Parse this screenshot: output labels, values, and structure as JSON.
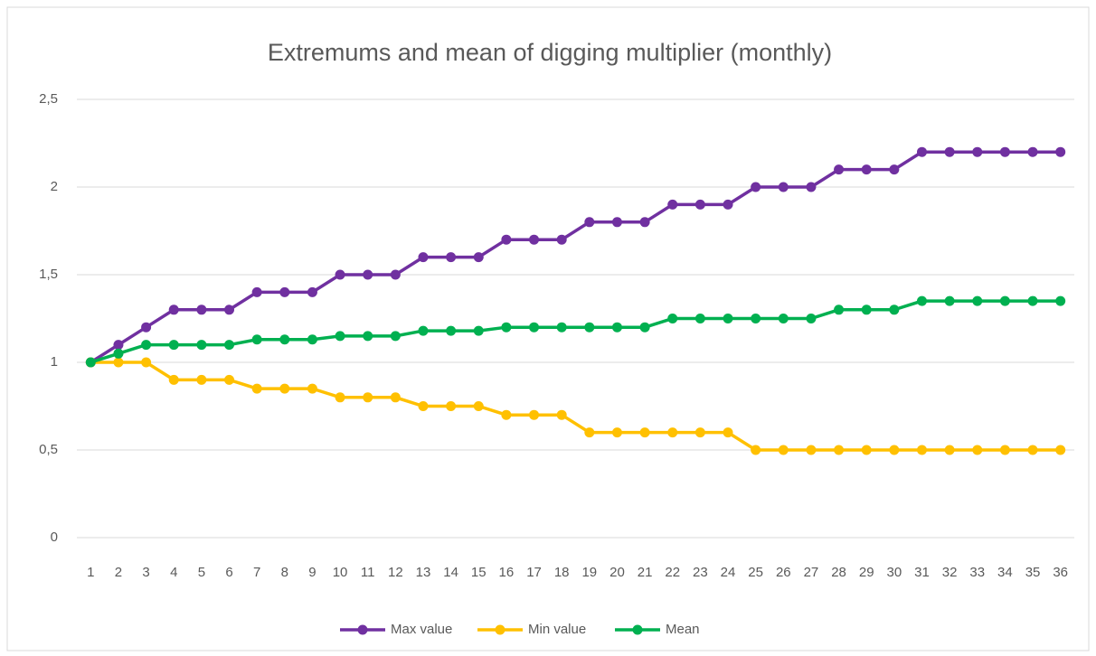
{
  "chart_data": {
    "type": "line",
    "title": "Extremums and mean of digging multiplier (monthly)",
    "categories": [
      "1",
      "2",
      "3",
      "4",
      "5",
      "6",
      "7",
      "8",
      "9",
      "10",
      "11",
      "12",
      "13",
      "14",
      "15",
      "16",
      "17",
      "18",
      "19",
      "20",
      "21",
      "22",
      "23",
      "24",
      "25",
      "26",
      "27",
      "28",
      "29",
      "30",
      "31",
      "32",
      "33",
      "34",
      "35",
      "36"
    ],
    "series": [
      {
        "name": "Max value",
        "color": "#7030a0",
        "values": [
          1,
          1.1,
          1.2,
          1.3,
          1.3,
          1.3,
          1.4,
          1.4,
          1.4,
          1.5,
          1.5,
          1.5,
          1.6,
          1.6,
          1.6,
          1.7,
          1.7,
          1.7,
          1.8,
          1.8,
          1.8,
          1.9,
          1.9,
          1.9,
          2,
          2,
          2,
          2.1,
          2.1,
          2.1,
          2.2,
          2.2,
          2.2,
          2.2,
          2.2,
          2.2
        ]
      },
      {
        "name": "Min value",
        "color": "#ffc000",
        "values": [
          1,
          1,
          1,
          0.9,
          0.9,
          0.9,
          0.85,
          0.85,
          0.85,
          0.8,
          0.8,
          0.8,
          0.75,
          0.75,
          0.75,
          0.7,
          0.7,
          0.7,
          0.6,
          0.6,
          0.6,
          0.6,
          0.6,
          0.6,
          0.5,
          0.5,
          0.5,
          0.5,
          0.5,
          0.5,
          0.5,
          0.5,
          0.5,
          0.5,
          0.5,
          0.5
        ]
      },
      {
        "name": "Mean",
        "color": "#00b050",
        "values": [
          1,
          1.05,
          1.1,
          1.1,
          1.1,
          1.1,
          1.13,
          1.13,
          1.13,
          1.15,
          1.15,
          1.15,
          1.18,
          1.18,
          1.18,
          1.2,
          1.2,
          1.2,
          1.2,
          1.2,
          1.2,
          1.25,
          1.25,
          1.25,
          1.25,
          1.25,
          1.25,
          1.3,
          1.3,
          1.3,
          1.35,
          1.35,
          1.35,
          1.35,
          1.35,
          1.35
        ]
      }
    ],
    "ylim": [
      0,
      2.5
    ],
    "yticks": [
      0,
      {
        "value": 0.5,
        "label": "0,5"
      },
      1,
      {
        "value": 1.5,
        "label": "1,5"
      },
      2,
      {
        "value": 2.5,
        "label": "2,5"
      }
    ],
    "grid": true,
    "legend": "bottom"
  }
}
